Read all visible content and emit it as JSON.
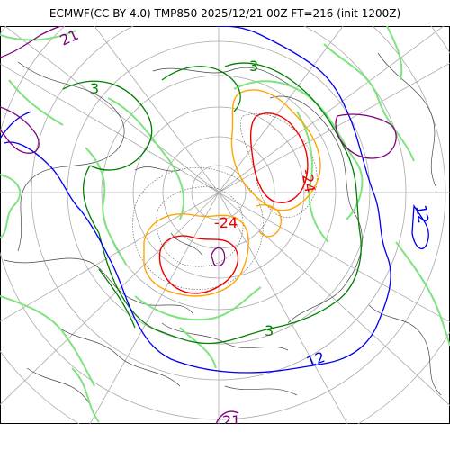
{
  "header": {
    "title": "ECMWF(CC BY 4.0) TMP850 2025/12/21 00Z FT=216 (init 1200Z)"
  },
  "map": {
    "projection": "polar-stereographic-north",
    "contour_levels": [
      {
        "value": "21",
        "color": "#800080"
      },
      {
        "value": "12",
        "color": "#0000ee"
      },
      {
        "value": "3",
        "color": "#007f00"
      },
      {
        "value": "-24",
        "color": "#ee0000"
      }
    ],
    "labels": {
      "nw_21": "21",
      "w_3": "3",
      "ne_3": "3",
      "ne_minus24": "-24",
      "ne_minus24_b": "-24",
      "center_minus24": "-24",
      "center_12": "12",
      "center_3": "3",
      "right_12": "12",
      "bottom_12": "12",
      "bottom_21": "21",
      "bottom_3": "3",
      "right_3": "3"
    },
    "colors": {
      "plus21": "#800080",
      "plus12": "#0000ee",
      "plus3": "#007f00",
      "light_green": "#7fe37f",
      "orange": "#ffa500",
      "red": "#ee0000",
      "grid": "#aaaaaa",
      "coast": "#444444"
    }
  }
}
